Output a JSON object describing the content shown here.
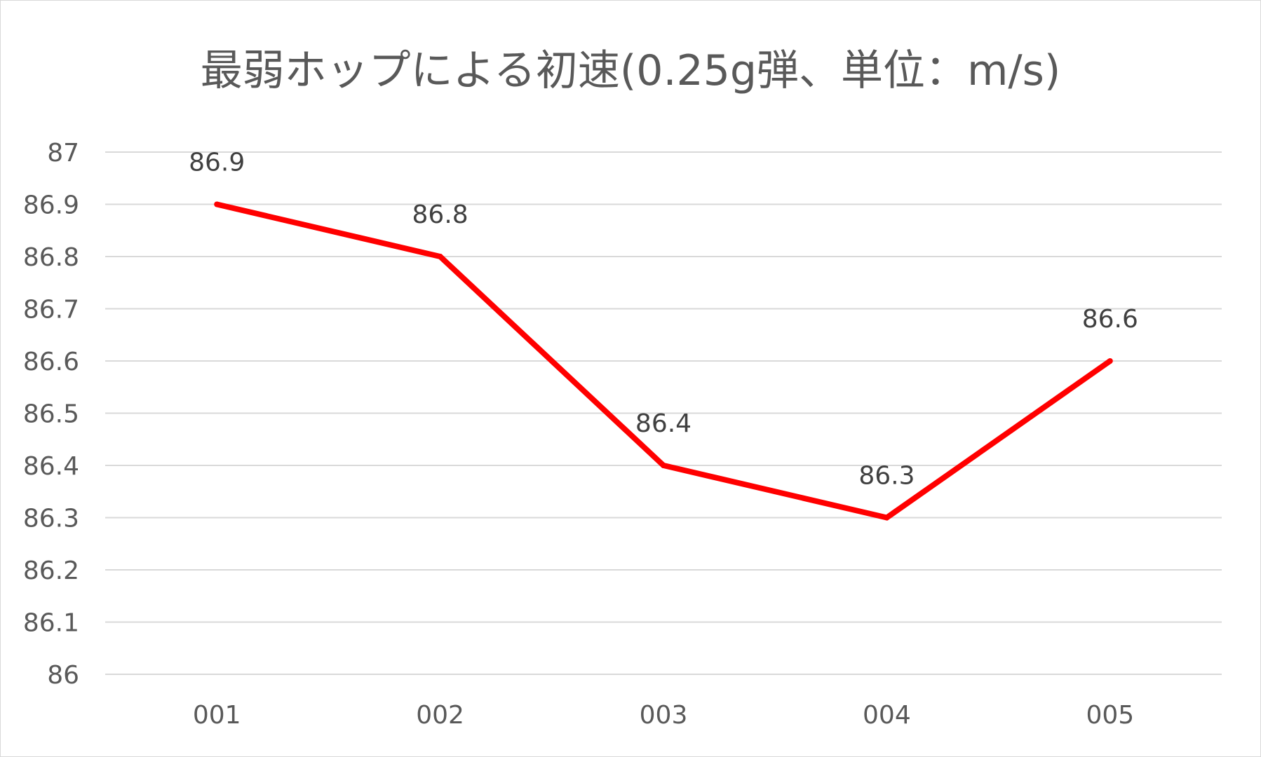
{
  "chart_data": {
    "type": "line",
    "title": "最弱ホップによる初速(0.25g弾、単位：m/s)",
    "categories": [
      "001",
      "002",
      "003",
      "004",
      "005"
    ],
    "series": [
      {
        "values": [
          86.9,
          86.8,
          86.4,
          86.3,
          86.6
        ],
        "color": "#ff0000"
      }
    ],
    "data_labels": [
      "86.9",
      "86.8",
      "86.4",
      "86.3",
      "86.6"
    ],
    "ylim": [
      86,
      87
    ],
    "y_ticks": [
      "86",
      "86.1",
      "86.2",
      "86.3",
      "86.4",
      "86.5",
      "86.6",
      "86.7",
      "86.8",
      "86.9",
      "87"
    ],
    "grid": true,
    "legend": "none",
    "xlabel": "",
    "ylabel": ""
  }
}
